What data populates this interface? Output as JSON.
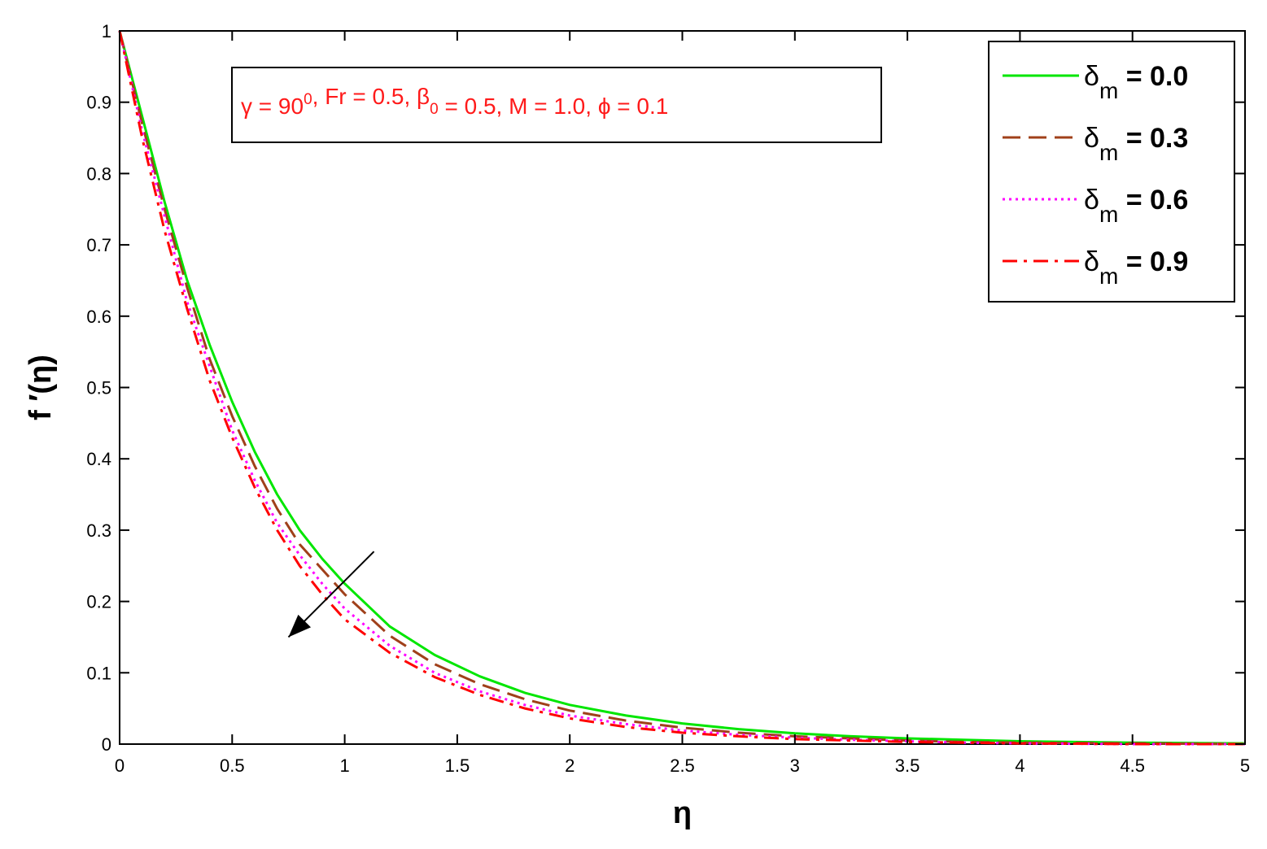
{
  "chart_data": {
    "type": "line",
    "xlabel": "η",
    "ylabel": "f ′(η)",
    "xlim": [
      0,
      5
    ],
    "ylim": [
      0,
      1
    ],
    "xticks": [
      "0",
      "0.5",
      "1",
      "1.5",
      "2",
      "2.5",
      "3",
      "3.5",
      "4",
      "4.5",
      "5"
    ],
    "yticks": [
      "0",
      "0.1",
      "0.2",
      "0.3",
      "0.4",
      "0.5",
      "0.6",
      "0.7",
      "0.8",
      "0.9",
      "1"
    ],
    "grid": false,
    "legend_position": "top-right",
    "annotation": {
      "parts": [
        {
          "text": "γ = 90"
        },
        {
          "text": "0",
          "style": "sup"
        },
        {
          "text": ", Fr = 0.5, β"
        },
        {
          "text": "0",
          "style": "sub"
        },
        {
          "text": " = 0.5, M = 1.0, ϕ = 0.1"
        }
      ],
      "color": "#ff1a1a"
    },
    "arrow": {
      "from": [
        1.13,
        0.27
      ],
      "to": [
        0.75,
        0.15
      ]
    },
    "series": [
      {
        "symbol": "δ",
        "subscript": "m",
        "value_text": " = 0.0",
        "color": "#00e600",
        "dash": "",
        "x": [
          0,
          0.1,
          0.2,
          0.3,
          0.4,
          0.5,
          0.6,
          0.7,
          0.8,
          0.9,
          1.0,
          1.2,
          1.4,
          1.6,
          1.8,
          2.0,
          2.25,
          2.5,
          2.75,
          3.0,
          3.25,
          3.5,
          3.75,
          4.0,
          4.5,
          5.0
        ],
        "y": [
          1.0,
          0.88,
          0.76,
          0.65,
          0.56,
          0.48,
          0.41,
          0.35,
          0.3,
          0.26,
          0.225,
          0.165,
          0.125,
          0.095,
          0.072,
          0.055,
          0.04,
          0.029,
          0.021,
          0.015,
          0.011,
          0.008,
          0.006,
          0.004,
          0.002,
          0.001
        ]
      },
      {
        "symbol": "δ",
        "subscript": "m",
        "value_text": " = 0.3",
        "color": "#a0401a",
        "dash": "22 10",
        "x": [
          0,
          0.1,
          0.2,
          0.3,
          0.4,
          0.5,
          0.6,
          0.7,
          0.8,
          0.9,
          1.0,
          1.2,
          1.4,
          1.6,
          1.8,
          2.0,
          2.25,
          2.5,
          2.75,
          3.0,
          3.25,
          3.5,
          3.75,
          4.0,
          4.5,
          5.0
        ],
        "y": [
          1.0,
          0.87,
          0.75,
          0.64,
          0.54,
          0.46,
          0.39,
          0.33,
          0.28,
          0.245,
          0.21,
          0.152,
          0.112,
          0.084,
          0.063,
          0.047,
          0.033,
          0.023,
          0.016,
          0.011,
          0.008,
          0.005,
          0.003,
          0.002,
          0.001,
          0.0
        ]
      },
      {
        "symbol": "δ",
        "subscript": "m",
        "value_text": " = 0.6",
        "color": "#ff00ff",
        "dash": "3 5",
        "x": [
          0,
          0.1,
          0.2,
          0.3,
          0.4,
          0.5,
          0.6,
          0.7,
          0.8,
          0.9,
          1.0,
          1.2,
          1.4,
          1.6,
          1.8,
          2.0,
          2.25,
          2.5,
          2.75,
          3.0,
          3.25,
          3.5,
          3.75,
          4.0,
          4.5,
          5.0
        ],
        "y": [
          1.0,
          0.86,
          0.74,
          0.62,
          0.53,
          0.44,
          0.37,
          0.31,
          0.265,
          0.225,
          0.19,
          0.138,
          0.1,
          0.074,
          0.055,
          0.04,
          0.028,
          0.019,
          0.013,
          0.009,
          0.006,
          0.004,
          0.002,
          0.001,
          0.0,
          0.0
        ]
      },
      {
        "symbol": "δ",
        "subscript": "m",
        "value_text": " = 0.9",
        "color": "#ff0000",
        "dash": "18 8 4 8",
        "x": [
          0,
          0.1,
          0.2,
          0.3,
          0.4,
          0.5,
          0.6,
          0.7,
          0.8,
          0.9,
          1.0,
          1.2,
          1.4,
          1.6,
          1.8,
          2.0,
          2.25,
          2.5,
          2.75,
          3.0,
          3.25,
          3.5,
          3.75,
          4.0,
          4.5,
          5.0
        ],
        "y": [
          1.0,
          0.85,
          0.72,
          0.61,
          0.51,
          0.43,
          0.36,
          0.3,
          0.25,
          0.21,
          0.175,
          0.128,
          0.094,
          0.069,
          0.05,
          0.036,
          0.024,
          0.016,
          0.011,
          0.007,
          0.005,
          0.003,
          0.002,
          0.001,
          0.0,
          0.0
        ]
      }
    ]
  }
}
